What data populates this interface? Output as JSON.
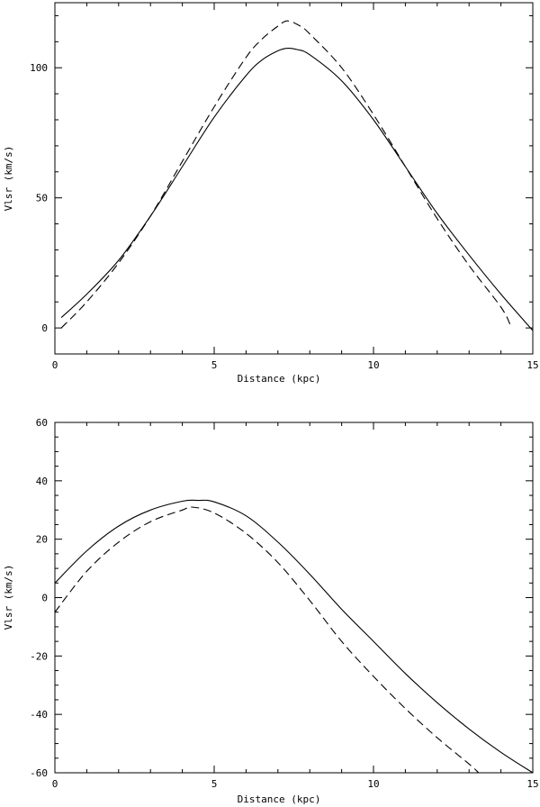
{
  "chart_data": [
    {
      "type": "line",
      "xlabel": "Distance (kpc)",
      "ylabel": "Vlsr (km/s)",
      "xlim": [
        0,
        15
      ],
      "ylim": [
        -10,
        125
      ],
      "xticks": [
        0,
        5,
        10,
        15
      ],
      "yticks": [
        0,
        50,
        100
      ],
      "x_minor_step": 1,
      "y_minor_step": 10,
      "grid": false,
      "series": [
        {
          "style": "solid",
          "x": [
            0.2,
            1,
            2,
            3,
            4,
            5,
            6,
            6.5,
            7,
            7.3,
            7.6,
            8,
            9,
            10,
            11,
            12,
            13,
            14,
            15
          ],
          "y": [
            4,
            13,
            26,
            43,
            62,
            81,
            97,
            103,
            106.5,
            107.5,
            107,
            105,
            95,
            80,
            62,
            44,
            28,
            13,
            -1
          ]
        },
        {
          "style": "dashed",
          "x": [
            0.2,
            1,
            2,
            3,
            4,
            5,
            6,
            6.5,
            7,
            7.3,
            7.7,
            8,
            9,
            10,
            11,
            12,
            13,
            14,
            14.3
          ],
          "y": [
            0,
            10,
            25,
            43,
            64,
            85,
            104,
            111,
            116,
            118,
            116,
            113,
            100,
            82,
            62,
            42,
            24,
            8,
            1
          ]
        }
      ]
    },
    {
      "type": "line",
      "xlabel": "Distance (kpc)",
      "ylabel": "Vlsr (km/s)",
      "xlim": [
        0,
        15
      ],
      "ylim": [
        -60,
        60
      ],
      "xticks": [
        0,
        5,
        10,
        15
      ],
      "yticks": [
        -60,
        -40,
        -20,
        0,
        20,
        40,
        60
      ],
      "x_minor_step": 1,
      "y_minor_step": 5,
      "grid": false,
      "series": [
        {
          "style": "solid",
          "x": [
            0,
            1,
            2,
            3,
            4,
            4.5,
            5,
            6,
            7,
            8,
            9,
            10,
            11,
            12,
            13,
            14,
            15
          ],
          "y": [
            5,
            16,
            24.5,
            30,
            33,
            33.3,
            32.8,
            28,
            19,
            8,
            -4,
            -15,
            -26,
            -36,
            -45,
            -53,
            -60
          ]
        },
        {
          "style": "dashed",
          "x": [
            0,
            1,
            2,
            3,
            4,
            4.3,
            5,
            6,
            7,
            8,
            9,
            10,
            11,
            12,
            13,
            13.3
          ],
          "y": [
            -5,
            9,
            19,
            26,
            30,
            31,
            29,
            22,
            12,
            -1,
            -15,
            -27,
            -38,
            -48,
            -57,
            -60
          ]
        }
      ]
    }
  ]
}
